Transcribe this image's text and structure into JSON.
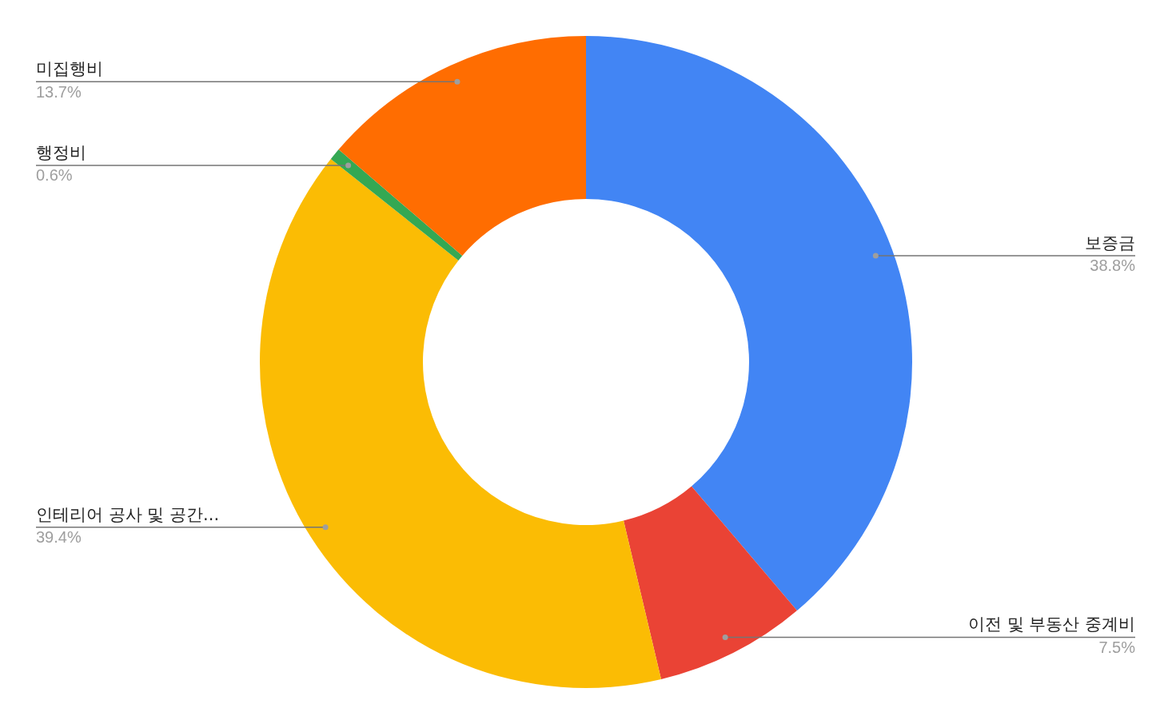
{
  "chart_data": {
    "type": "donut",
    "categories": [
      "보증금",
      "이전 및 부동산 중계비",
      "인테리어 공사 및 공간...",
      "행정비",
      "미집행비"
    ],
    "values": [
      38.8,
      7.5,
      39.4,
      0.6,
      13.7
    ],
    "colors": [
      "#4285f4",
      "#ea4335",
      "#fbbc04",
      "#34a853",
      "#ff6d01"
    ],
    "value_labels": [
      "38.8%",
      "7.5%",
      "39.4%",
      "0.6%",
      "13.7%"
    ],
    "legend": false
  }
}
